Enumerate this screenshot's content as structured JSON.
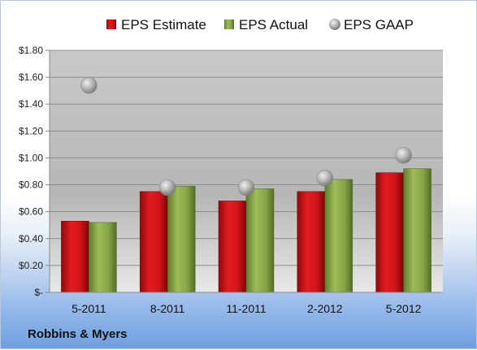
{
  "company": "Robbins & Myers",
  "colors": {
    "estimate": "#d01418",
    "actual": "#8aa84a",
    "gaap": "#b9b9b9"
  },
  "chart_data": {
    "type": "bar",
    "categories": [
      "5-2011",
      "8-2011",
      "11-2011",
      "2-2012",
      "5-2012"
    ],
    "series": [
      {
        "name": "EPS Estimate",
        "kind": "bar",
        "values": [
          0.53,
          0.75,
          0.68,
          0.75,
          0.89
        ]
      },
      {
        "name": "EPS Actual",
        "kind": "bar",
        "values": [
          0.52,
          0.79,
          0.77,
          0.84,
          0.92
        ]
      },
      {
        "name": "EPS GAAP",
        "kind": "marker",
        "values": [
          1.54,
          0.78,
          0.78,
          0.85,
          1.02
        ]
      }
    ],
    "y_ticks": [
      {
        "value": 0.0,
        "label": "$-"
      },
      {
        "value": 0.2,
        "label": "$0.20"
      },
      {
        "value": 0.4,
        "label": "$0.40"
      },
      {
        "value": 0.6,
        "label": "$0.60"
      },
      {
        "value": 0.8,
        "label": "$0.80"
      },
      {
        "value": 1.0,
        "label": "$1.00"
      },
      {
        "value": 1.2,
        "label": "$1.20"
      },
      {
        "value": 1.4,
        "label": "$1.40"
      },
      {
        "value": 1.6,
        "label": "$1.60"
      },
      {
        "value": 1.8,
        "label": "$1.80"
      }
    ],
    "ylim": [
      0,
      1.8
    ],
    "grid": true,
    "legend_position": "top-center"
  }
}
